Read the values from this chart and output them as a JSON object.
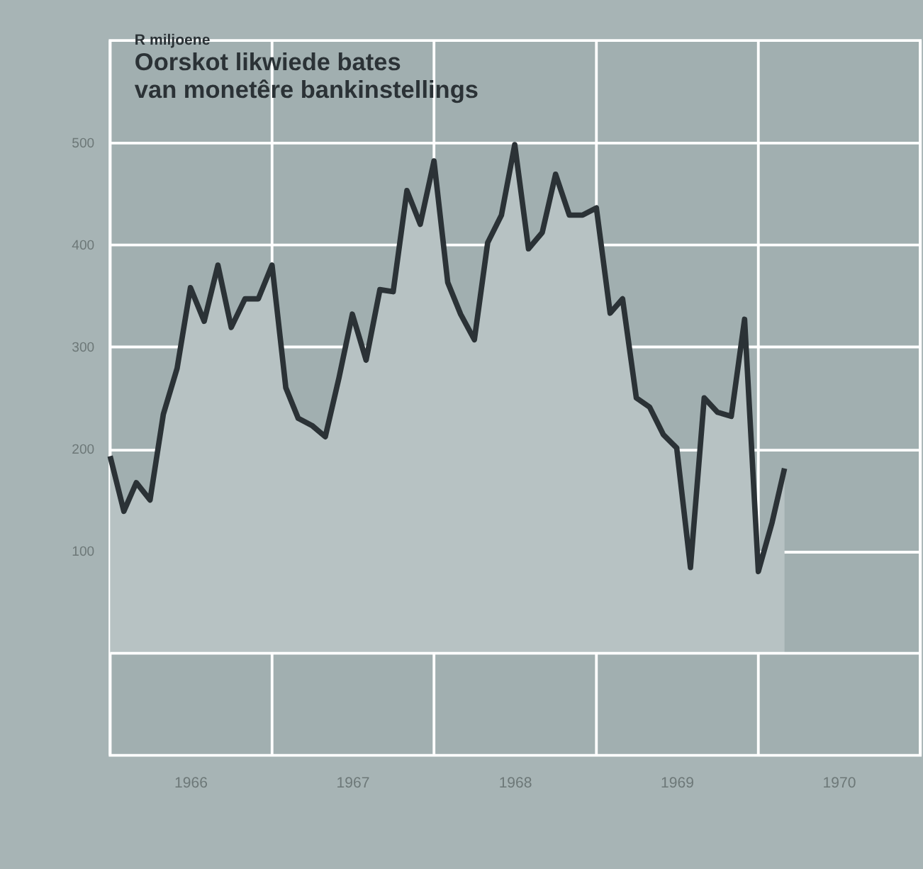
{
  "chart_data": {
    "type": "area",
    "subtitle": "R miljoene",
    "title": "Oorskot likwiede bates\nvan monetêre bankinstellings",
    "x": [
      "1966-01",
      "1966-02",
      "1966-03",
      "1966-04",
      "1966-05",
      "1966-06",
      "1966-07",
      "1966-08",
      "1966-09",
      "1966-10",
      "1966-11",
      "1966-12",
      "1967-01",
      "1967-02",
      "1967-03",
      "1967-04",
      "1967-05",
      "1967-06",
      "1967-07",
      "1967-08",
      "1967-09",
      "1967-10",
      "1967-11",
      "1967-12",
      "1968-01",
      "1968-02",
      "1968-03",
      "1968-04",
      "1968-05",
      "1968-06",
      "1968-07",
      "1968-08",
      "1968-09",
      "1968-10",
      "1968-11",
      "1968-12",
      "1969-01",
      "1969-02",
      "1969-03",
      "1969-04",
      "1969-05",
      "1969-06",
      "1969-07",
      "1969-08",
      "1969-09",
      "1969-10",
      "1969-11",
      "1969-12",
      "1970-01",
      "1970-02",
      "1970-03"
    ],
    "series": [
      {
        "color": "#2b3236",
        "values": [
          193,
          139,
          167,
          150,
          234,
          279,
          358,
          325,
          380,
          319,
          347,
          347,
          380,
          260,
          230,
          223,
          212,
          270,
          332,
          287,
          356,
          354,
          453,
          420,
          482,
          363,
          332,
          307,
          402,
          429,
          498,
          396,
          412,
          469,
          429,
          429,
          436,
          333,
          347,
          250,
          241,
          214,
          201,
          84,
          250,
          236,
          232,
          327,
          80,
          128,
          181
        ]
      }
    ],
    "xlim": [
      "1966-01-01",
      "1971-01-01"
    ],
    "xticks": [
      {
        "value": "1966-01-01",
        "label": null
      },
      {
        "value": "1966-07-01",
        "label": "1966"
      },
      {
        "value": "1967-01-01",
        "label": null
      },
      {
        "value": "1967-07-01",
        "label": "1967"
      },
      {
        "value": "1968-01-01",
        "label": null
      },
      {
        "value": "1968-07-01",
        "label": "1968"
      },
      {
        "value": "1969-01-01",
        "label": null
      },
      {
        "value": "1969-07-01",
        "label": "1969"
      },
      {
        "value": "1970-01-01",
        "label": null
      },
      {
        "value": "1970-07-01",
        "label": "1970"
      },
      {
        "value": "1971-01-01",
        "label": null
      }
    ],
    "ylim": [
      -100,
      600
    ],
    "yticks": [
      100,
      200,
      300,
      400,
      500
    ],
    "ref_lines": [
      {
        "axis": "y",
        "value": 0,
        "color": "#ffffff"
      }
    ],
    "grid": true
  }
}
